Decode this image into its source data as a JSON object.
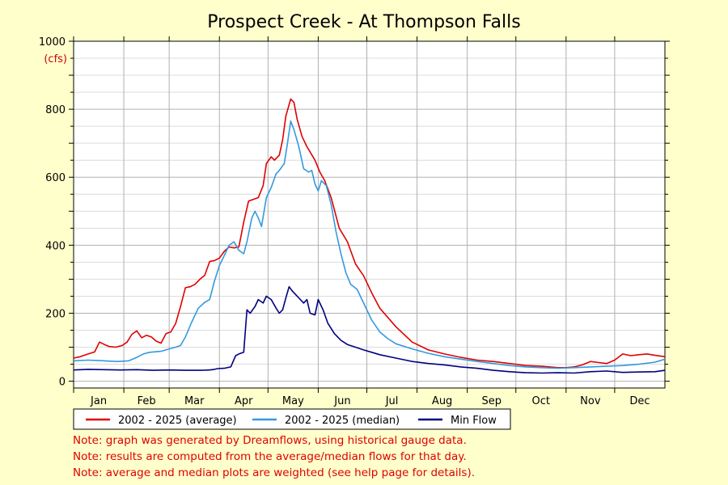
{
  "chart_data": {
    "type": "line",
    "title": "Prospect Creek - At Thompson Falls",
    "ylabel": "(cfs)",
    "ylim": [
      0,
      1000
    ],
    "yticks": [
      0,
      200,
      400,
      600,
      800,
      1000
    ],
    "xlim": [
      1,
      366
    ],
    "months": [
      {
        "label": "Jan",
        "start": 1
      },
      {
        "label": "Feb",
        "start": 32
      },
      {
        "label": "Mar",
        "start": 60
      },
      {
        "label": "Apr",
        "start": 91
      },
      {
        "label": "May",
        "start": 121
      },
      {
        "label": "Jun",
        "start": 152
      },
      {
        "label": "Jul",
        "start": 182
      },
      {
        "label": "Aug",
        "start": 213
      },
      {
        "label": "Sep",
        "start": 244
      },
      {
        "label": "Oct",
        "start": 274
      },
      {
        "label": "Nov",
        "start": 305
      },
      {
        "label": "Dec",
        "start": 335
      }
    ],
    "grid": true,
    "legend_position": "bottom-left",
    "series": [
      {
        "name": "2002 - 2025 (average)",
        "color": "#e00000",
        "x": [
          1,
          5,
          10,
          14,
          17,
          20,
          23,
          27,
          31,
          34,
          37,
          40,
          43,
          46,
          49,
          52,
          55,
          58,
          61,
          64,
          67,
          70,
          73,
          76,
          79,
          82,
          85,
          88,
          91,
          94,
          97,
          100,
          103,
          106,
          109,
          112,
          115,
          118,
          120,
          123,
          125,
          128,
          130,
          132,
          135,
          137,
          139,
          142,
          145,
          150,
          153,
          156,
          160,
          165,
          170,
          175,
          180,
          185,
          190,
          200,
          210,
          220,
          230,
          240,
          250,
          260,
          270,
          280,
          290,
          300,
          305,
          310,
          315,
          320,
          325,
          330,
          335,
          340,
          345,
          350,
          355,
          360,
          366
        ],
        "y": [
          68,
          72,
          80,
          86,
          115,
          108,
          102,
          100,
          105,
          115,
          138,
          148,
          128,
          135,
          130,
          118,
          112,
          140,
          145,
          170,
          220,
          275,
          278,
          285,
          300,
          312,
          352,
          355,
          362,
          382,
          395,
          392,
          395,
          468,
          530,
          535,
          540,
          575,
          640,
          660,
          650,
          665,
          710,
          780,
          830,
          820,
          770,
          720,
          690,
          650,
          615,
          590,
          540,
          450,
          410,
          345,
          310,
          260,
          215,
          160,
          115,
          92,
          80,
          70,
          62,
          58,
          52,
          46,
          44,
          40,
          40,
          42,
          48,
          58,
          55,
          52,
          62,
          80,
          75,
          78,
          80,
          76,
          72
        ]
      },
      {
        "name": "2002 - 2025 (median)",
        "color": "#3399e0",
        "x": [
          1,
          10,
          20,
          28,
          35,
          40,
          44,
          48,
          55,
          60,
          64,
          67,
          70,
          74,
          78,
          82,
          85,
          88,
          91,
          94,
          97,
          100,
          103,
          106,
          108,
          111,
          113,
          115,
          117,
          120,
          123,
          126,
          128,
          131,
          133,
          135,
          137,
          140,
          143,
          146,
          148,
          150,
          152,
          154,
          157,
          160,
          163,
          166,
          169,
          172,
          176,
          180,
          185,
          190,
          195,
          200,
          210,
          220,
          230,
          240,
          250,
          260,
          270,
          280,
          290,
          300,
          310,
          320,
          330,
          340,
          350,
          360,
          366
        ],
        "y": [
          60,
          62,
          60,
          58,
          60,
          70,
          80,
          85,
          88,
          95,
          100,
          105,
          130,
          175,
          215,
          232,
          240,
          295,
          340,
          370,
          400,
          410,
          385,
          375,
          410,
          480,
          500,
          480,
          455,
          540,
          570,
          610,
          620,
          640,
          700,
          765,
          740,
          690,
          625,
          615,
          620,
          580,
          560,
          590,
          575,
          520,
          440,
          375,
          320,
          285,
          270,
          230,
          180,
          145,
          125,
          110,
          95,
          82,
          72,
          65,
          58,
          52,
          46,
          42,
          40,
          38,
          40,
          42,
          44,
          46,
          50,
          56,
          65
        ]
      },
      {
        "name": "Min Flow",
        "color": "#000080",
        "x": [
          1,
          10,
          20,
          30,
          40,
          50,
          60,
          70,
          80,
          85,
          88,
          90,
          94,
          98,
          101,
          103,
          106,
          108,
          110,
          113,
          115,
          118,
          120,
          123,
          126,
          128,
          130,
          132,
          134,
          136,
          138,
          140,
          143,
          145,
          147,
          150,
          152,
          155,
          158,
          162,
          166,
          170,
          175,
          180,
          185,
          190,
          200,
          210,
          220,
          230,
          240,
          250,
          260,
          270,
          280,
          290,
          300,
          310,
          320,
          330,
          340,
          350,
          360,
          366
        ],
        "y": [
          33,
          35,
          34,
          33,
          34,
          32,
          33,
          32,
          32,
          33,
          35,
          37,
          38,
          42,
          75,
          80,
          85,
          210,
          200,
          220,
          240,
          230,
          250,
          240,
          215,
          200,
          210,
          245,
          278,
          265,
          255,
          245,
          230,
          240,
          200,
          195,
          240,
          210,
          170,
          140,
          120,
          108,
          100,
          92,
          85,
          78,
          68,
          58,
          52,
          48,
          42,
          38,
          32,
          28,
          25,
          24,
          25,
          24,
          28,
          30,
          26,
          27,
          28,
          32
        ]
      }
    ]
  },
  "notes": [
    "Note: graph was generated by Dreamflows, using historical gauge data.",
    "Note: results are computed from the average/median flows for that day.",
    "Note: average and median plots are weighted (see help page for details)."
  ]
}
